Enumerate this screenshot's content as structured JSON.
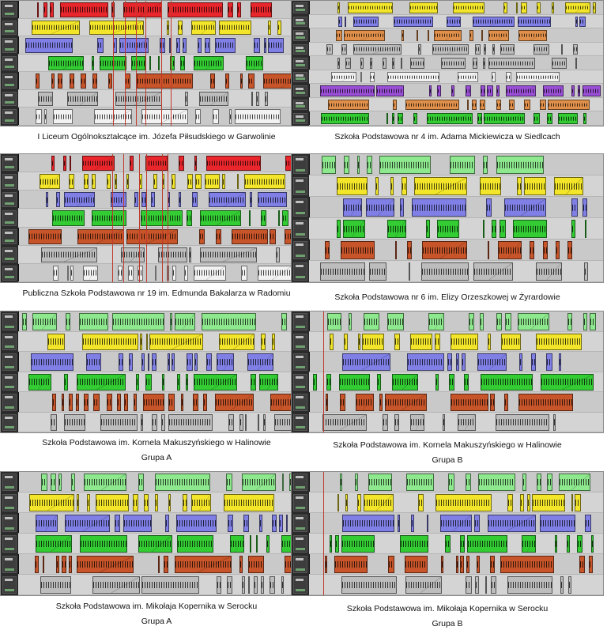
{
  "panels": [
    {
      "caption": "I Liceum Ogólnokształcące  im. Józefa Piłsudskiego w Garwolinie",
      "subcaption": ""
    },
    {
      "caption": "Szkoła Podstawowa nr 4 im. Adama Mickiewicza w Siedlcach",
      "subcaption": ""
    },
    {
      "caption": "Publiczna Szkoła Podstawowa nr 19 im. Edmunda Bakalarza w Radomiu",
      "subcaption": ""
    },
    {
      "caption": "Szkoła Podstawowa nr 6 im. Elizy Orzeszkowej w Żyrardowie",
      "subcaption": ""
    },
    {
      "caption": "Szkoła Podstawowa im. Kornela Makuszyńskiego w Halinowie",
      "subcaption": "Grupa A"
    },
    {
      "caption": "Szkoła Podstawowa im. Kornela Makuszyńskiego w Halinowie",
      "subcaption": "Grupa B"
    },
    {
      "caption": "Szkoła Podstawowa im. Mikołaja Kopernika w Serocku",
      "subcaption": "Grupa A"
    },
    {
      "caption": "Szkoła Podstawowa im. Mikołaja Kopernika w Serocku",
      "subcaption": "Grupa B"
    }
  ],
  "colors": {
    "red": "#e8262b",
    "yellow": "#f2e52a",
    "blue": "#7f7fe6",
    "green": "#33cc33",
    "lightgreen": "#8ee88e",
    "orange": "#c8552a",
    "gray": "#bdbdbd",
    "white": "#f2f2f2",
    "purple": "#9a4fd6",
    "tan": "#e0904a",
    "marker": "#c0392b"
  }
}
